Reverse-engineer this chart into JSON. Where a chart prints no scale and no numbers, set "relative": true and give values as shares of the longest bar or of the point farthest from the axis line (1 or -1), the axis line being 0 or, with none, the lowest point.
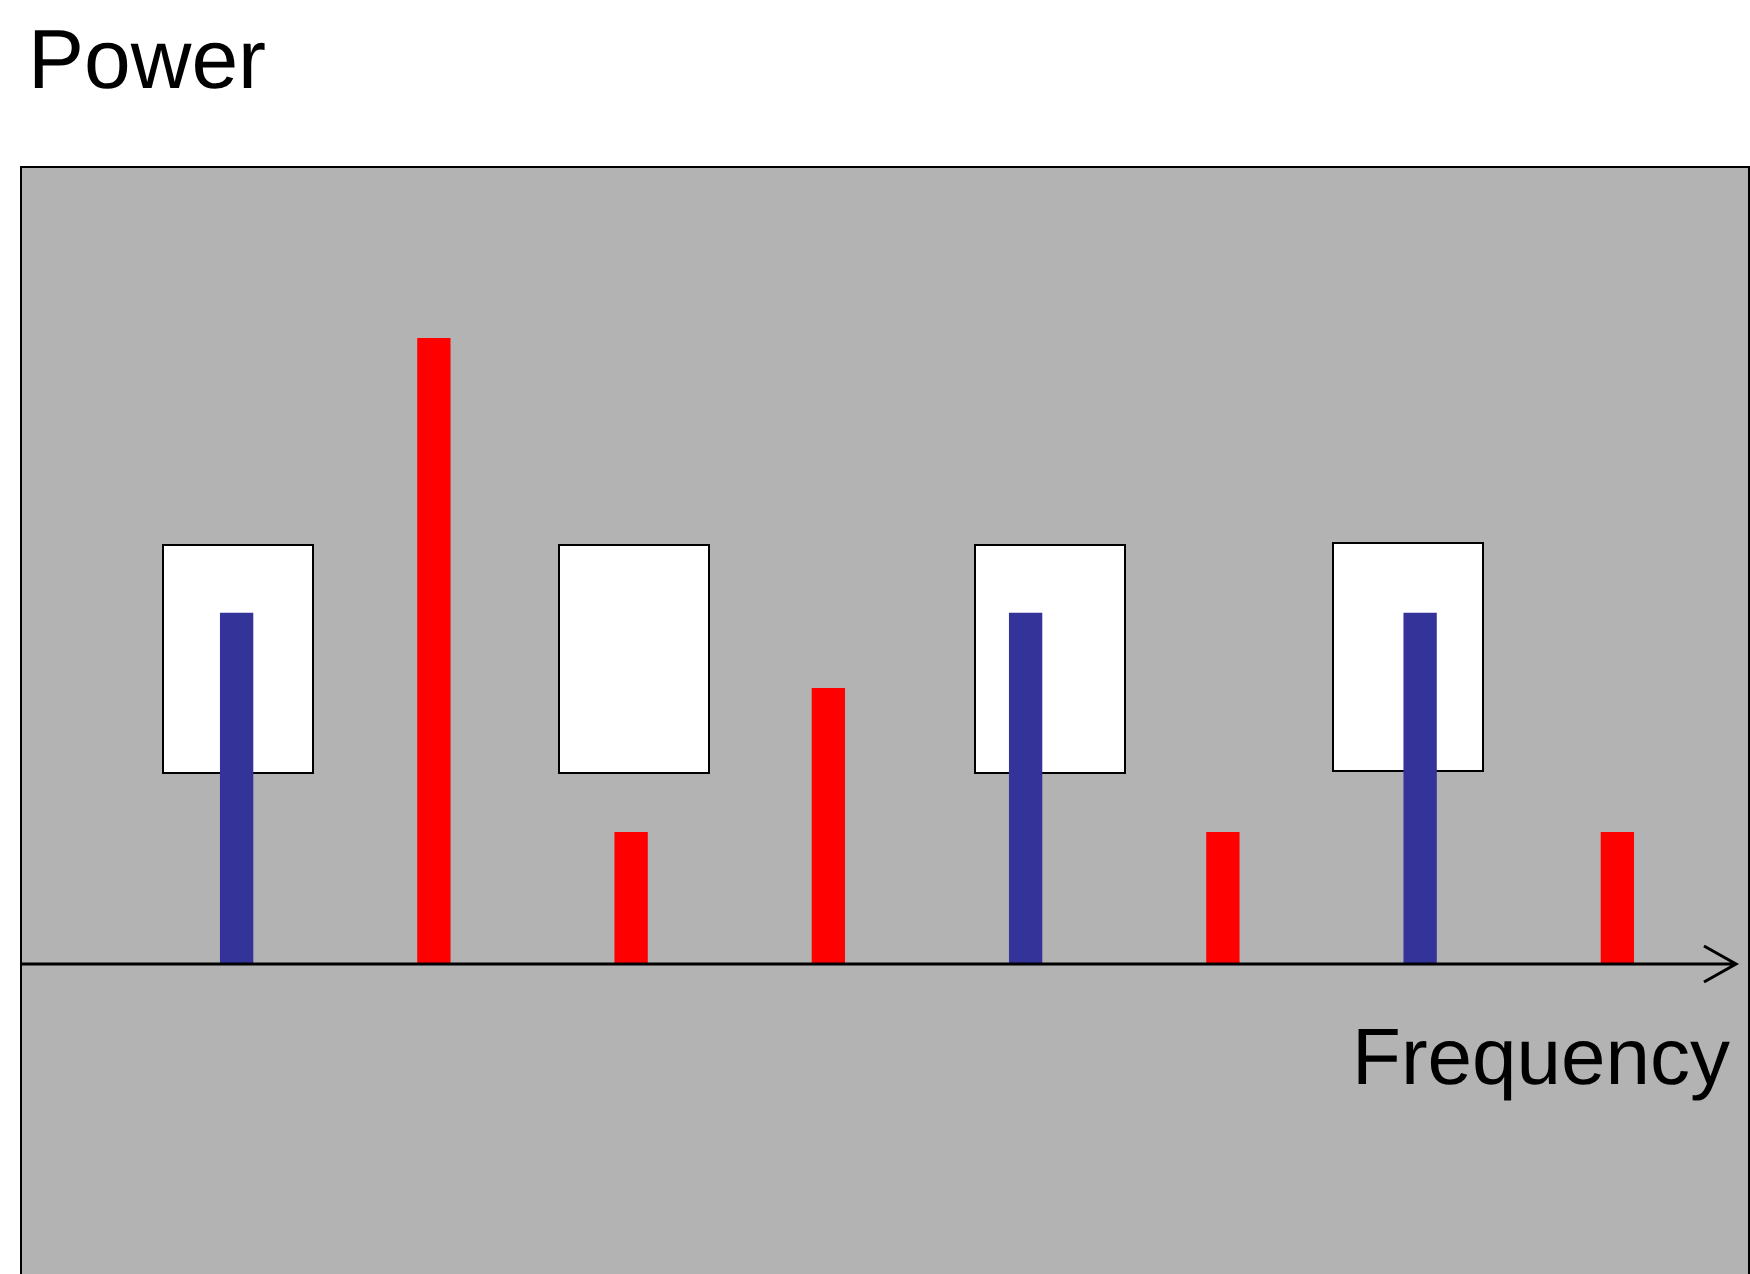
{
  "chart_data": {
    "type": "bar",
    "title": "Power",
    "xlabel": "Frequency",
    "relative": true,
    "categories": [
      null,
      null,
      null,
      null,
      null,
      null,
      null,
      null
    ],
    "values": [
      0.56,
      1,
      0.21,
      0.44,
      0.56,
      0.21,
      0.56,
      0.21
    ],
    "colors": [
      "#333399",
      "#ff0000",
      "#ff0000",
      "#ff0000",
      "#333399",
      "#ff0000",
      "#333399",
      "#ff0000"
    ]
  }
}
